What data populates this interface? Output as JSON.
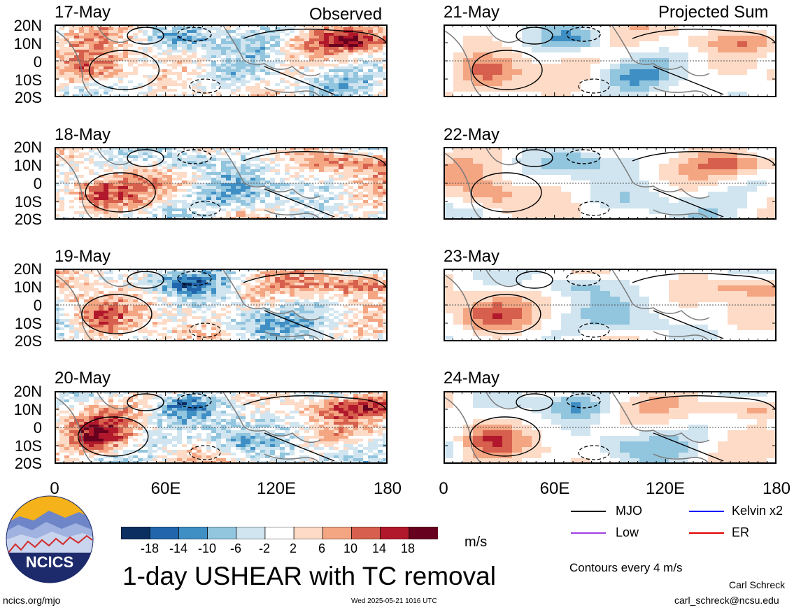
{
  "headers": {
    "left": "Observed",
    "right": "Projected Sum"
  },
  "panels_left": [
    {
      "date": "17-May"
    },
    {
      "date": "18-May"
    },
    {
      "date": "19-May"
    },
    {
      "date": "20-May"
    }
  ],
  "panels_right": [
    {
      "date": "21-May"
    },
    {
      "date": "22-May"
    },
    {
      "date": "23-May"
    },
    {
      "date": "24-May"
    }
  ],
  "lat_labels": [
    "20N",
    "10N",
    "0",
    "10S",
    "20S"
  ],
  "lon_labels": [
    "0",
    "60E",
    "120E",
    "180"
  ],
  "colorbar": {
    "labels": [
      "-18",
      "-14",
      "-10",
      "-6",
      "-2",
      "2",
      "6",
      "10",
      "14",
      "18"
    ],
    "colors": [
      "#0b2f61",
      "#2166ac",
      "#3f8fc5",
      "#92c5de",
      "#d1e5f0",
      "#ffffff",
      "#fddbc7",
      "#f4a582",
      "#d6604d",
      "#b2182b",
      "#67001f"
    ],
    "units": "m/s"
  },
  "title": "1-day USHEAR with TC removal",
  "legend": {
    "items": [
      {
        "label": "MJO",
        "color": "#000000"
      },
      {
        "label": "Kelvin x2",
        "color": "#0000ff"
      },
      {
        "label": "Low",
        "color": "#a040e0"
      },
      {
        "label": "ER",
        "color": "#e00000"
      }
    ],
    "contour_note": "Contours every 4 m/s"
  },
  "logo": {
    "text": "NCICS"
  },
  "footer": {
    "url": "ncics.org/mjo",
    "timestamp": "Wed 2025-05-21 1016 UTC",
    "author": "Carl Schreck",
    "email": "carl_schreck@ncsu.edu"
  }
}
